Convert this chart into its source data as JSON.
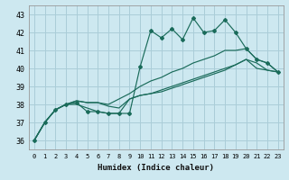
{
  "xlabel": "Humidex (Indice chaleur)",
  "background_color": "#cde8f0",
  "grid_color": "#aacdd8",
  "line_color": "#1a6b5a",
  "xlim": [
    -0.5,
    23.5
  ],
  "ylim": [
    35.5,
    43.5
  ],
  "xticks": [
    0,
    1,
    2,
    3,
    4,
    5,
    6,
    7,
    8,
    9,
    10,
    11,
    12,
    13,
    14,
    15,
    16,
    17,
    18,
    19,
    20,
    21,
    22,
    23
  ],
  "yticks": [
    36,
    37,
    38,
    39,
    40,
    41,
    42,
    43
  ],
  "line1_x": [
    0,
    1,
    2,
    3,
    4,
    5,
    6,
    7,
    8,
    9,
    10,
    11,
    12,
    13,
    14,
    15,
    16,
    17,
    18,
    19,
    20,
    21,
    22,
    23
  ],
  "line1_y": [
    36.0,
    37.0,
    37.7,
    38.0,
    38.1,
    37.6,
    37.6,
    37.5,
    37.5,
    37.5,
    40.1,
    42.1,
    41.7,
    42.2,
    41.6,
    42.8,
    42.0,
    42.1,
    42.7,
    42.0,
    41.1,
    40.5,
    40.3,
    39.8
  ],
  "line2_x": [
    0,
    1,
    2,
    3,
    4,
    5,
    6,
    7,
    8,
    9,
    10,
    11,
    12,
    13,
    14,
    15,
    16,
    17,
    18,
    19,
    20,
    21,
    22,
    23
  ],
  "line2_y": [
    36.0,
    37.0,
    37.7,
    38.0,
    38.2,
    38.1,
    38.1,
    38.0,
    38.3,
    38.6,
    39.0,
    39.3,
    39.5,
    39.8,
    40.0,
    40.3,
    40.5,
    40.7,
    41.0,
    41.0,
    41.1,
    40.5,
    40.3,
    39.8
  ],
  "line3_x": [
    0,
    1,
    2,
    3,
    4,
    5,
    6,
    7,
    8,
    9,
    10,
    11,
    12,
    13,
    14,
    15,
    16,
    17,
    18,
    19,
    20,
    21,
    22,
    23
  ],
  "line3_y": [
    36.0,
    37.0,
    37.7,
    38.0,
    38.2,
    38.1,
    38.1,
    37.9,
    37.8,
    38.3,
    38.5,
    38.6,
    38.8,
    39.0,
    39.2,
    39.4,
    39.6,
    39.8,
    40.0,
    40.2,
    40.5,
    40.0,
    39.9,
    39.8
  ],
  "line4_x": [
    0,
    1,
    2,
    3,
    4,
    5,
    6,
    7,
    8,
    9,
    10,
    11,
    12,
    13,
    14,
    15,
    16,
    17,
    18,
    19,
    20,
    21,
    22,
    23
  ],
  "line4_y": [
    36.0,
    37.0,
    37.7,
    38.0,
    38.0,
    37.8,
    37.6,
    37.5,
    37.5,
    38.3,
    38.5,
    38.6,
    38.7,
    38.9,
    39.1,
    39.3,
    39.5,
    39.7,
    39.9,
    40.2,
    40.5,
    40.3,
    39.9,
    39.8
  ]
}
